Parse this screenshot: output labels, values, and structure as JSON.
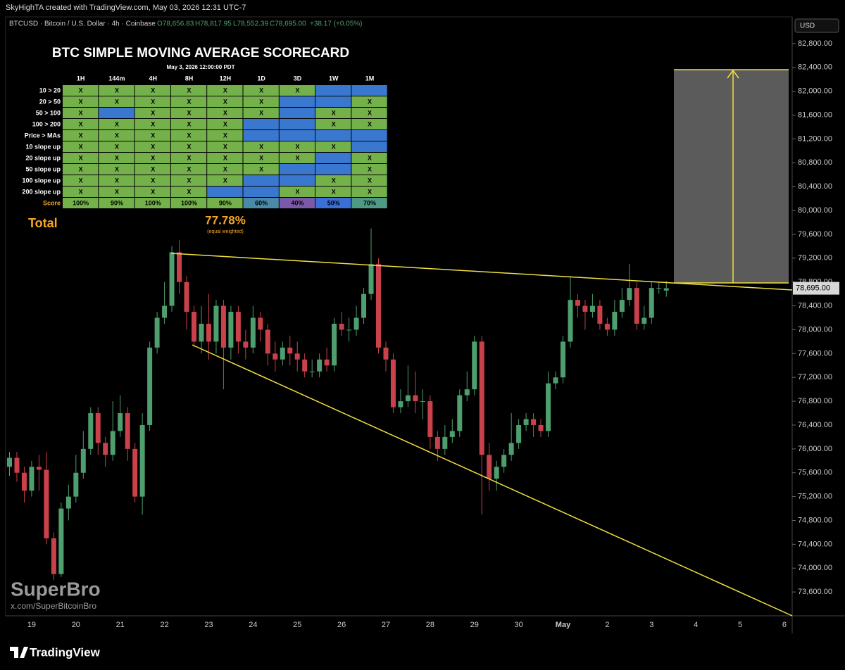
{
  "header": {
    "credit": "SkyHighTA created with TradingView.com, May 03, 2026 12:31 UTC-7",
    "symbol": "BTCUSD · Bitcoin / U.S. Dollar · 4h · Coinbase",
    "open": "O78,656.83",
    "high": "H78,817.95",
    "low": "L78,552.39",
    "close": "C78,695.00",
    "change": "+38.17 (+0.05%)",
    "currency": "USD"
  },
  "scorecard": {
    "title": "BTC SIMPLE MOVING AVERAGE SCORECARD",
    "date": "May 3, 2026 12:00:00 PDT",
    "columns": [
      "1H",
      "144m",
      "4H",
      "8H",
      "12H",
      "1D",
      "3D",
      "1W",
      "1M"
    ],
    "check_color": "#74b14b",
    "blank_color": "#3a78d0",
    "rows": [
      {
        "label": "10 > 20",
        "cells": [
          "X",
          "X",
          "X",
          "X",
          "X",
          "X",
          "X",
          null,
          null
        ]
      },
      {
        "label": "20 > 50",
        "cells": [
          "X",
          "X",
          "X",
          "X",
          "X",
          "X",
          null,
          null,
          "X"
        ]
      },
      {
        "label": "50 > 100",
        "cells": [
          "X",
          null,
          "X",
          "X",
          "X",
          "X",
          null,
          "X",
          "X"
        ]
      },
      {
        "label": "100 > 200",
        "cells": [
          "X",
          "X",
          "X",
          "X",
          "X",
          null,
          null,
          "X",
          "X"
        ]
      },
      {
        "label": "Price > MAs",
        "cells": [
          "X",
          "X",
          "X",
          "X",
          "X",
          null,
          null,
          null,
          null
        ]
      },
      {
        "label": "10 slope up",
        "cells": [
          "X",
          "X",
          "X",
          "X",
          "X",
          "X",
          "X",
          "X",
          null
        ]
      },
      {
        "label": "20 slope up",
        "cells": [
          "X",
          "X",
          "X",
          "X",
          "X",
          "X",
          "X",
          null,
          "X"
        ]
      },
      {
        "label": "50 slope up",
        "cells": [
          "X",
          "X",
          "X",
          "X",
          "X",
          "X",
          null,
          null,
          "X"
        ]
      },
      {
        "label": "100 slope up",
        "cells": [
          "X",
          "X",
          "X",
          "X",
          "X",
          null,
          null,
          "X",
          "X"
        ]
      },
      {
        "label": "200 slope up",
        "cells": [
          "X",
          "X",
          "X",
          "X",
          null,
          null,
          "X",
          "X",
          "X"
        ]
      }
    ],
    "score_label": "Score",
    "scores": [
      "100%",
      "90%",
      "100%",
      "100%",
      "90%",
      "60%",
      "40%",
      "50%",
      "70%"
    ],
    "score_colors": [
      "#74b14b",
      "#74b14b",
      "#74b14b",
      "#74b14b",
      "#74b14b",
      "#4a8aa8",
      "#7a5aa8",
      "#3a6fd8",
      "#4f9a86"
    ],
    "total_label": "Total",
    "total": "77.78%",
    "total_note": "(equal weighted)"
  },
  "chart_data": {
    "type": "candlestick",
    "up_color": "#4e9e6e",
    "down_color": "#c8414b",
    "open": [
      75700,
      75850,
      75600,
      75300,
      75700,
      75650,
      74500,
      73900,
      75000,
      75200,
      75600,
      76000,
      76600,
      76100,
      75900,
      76300,
      76600,
      76000,
      75200,
      76400,
      77700,
      78200,
      78400,
      79300,
      78800,
      78300,
      77800,
      78100,
      77800,
      78400,
      77700,
      78300,
      77800,
      77700,
      78200,
      78000,
      77600,
      77500,
      77700,
      77600,
      77500,
      77300,
      77300,
      77500,
      77400,
      78100,
      78000,
      78000,
      78200,
      78600,
      79100,
      77700,
      77500,
      76700,
      76800,
      76900,
      76800,
      76800,
      76200,
      76000,
      76200,
      76300,
      76900,
      77000,
      77800,
      75900,
      75500,
      75700,
      75900,
      76100,
      76400,
      76500,
      76400,
      76300,
      77100,
      77200,
      77800,
      78500,
      78400,
      78300,
      78400,
      78100,
      78000,
      78300,
      78500,
      78700,
      78100,
      78200,
      78700,
      78656.83
    ],
    "high": [
      75950,
      75950,
      75700,
      75800,
      75900,
      75950,
      74600,
      75100,
      75400,
      75900,
      76300,
      76700,
      76700,
      76200,
      76800,
      76900,
      76700,
      76100,
      76600,
      77800,
      78300,
      78800,
      79400,
      79500,
      78900,
      78400,
      78400,
      78600,
      78500,
      78500,
      78400,
      78400,
      78000,
      78400,
      78300,
      78100,
      77800,
      77800,
      77900,
      77800,
      77600,
      77500,
      77600,
      77700,
      78200,
      78300,
      78200,
      78400,
      78700,
      79700,
      79200,
      77800,
      77600,
      77000,
      77400,
      77300,
      77000,
      76900,
      76300,
      76400,
      76500,
      77000,
      77300,
      77900,
      77900,
      76100,
      75800,
      76000,
      76600,
      76500,
      76600,
      76600,
      76500,
      77300,
      77300,
      77900,
      78900,
      78600,
      78500,
      78600,
      78500,
      78200,
      78500,
      78700,
      79100,
      78800,
      78400,
      78800,
      78800,
      78817.95
    ],
    "low": [
      75550,
      75450,
      75100,
      75200,
      75300,
      74400,
      73800,
      73850,
      74800,
      75100,
      75500,
      75900,
      75900,
      75700,
      75800,
      76200,
      75800,
      75100,
      74900,
      76300,
      77600,
      78100,
      78300,
      78600,
      78000,
      77700,
      77600,
      77500,
      77600,
      77000,
      77500,
      77600,
      77500,
      77600,
      77800,
      77400,
      77300,
      77400,
      77400,
      77300,
      77200,
      77200,
      77200,
      77300,
      77300,
      77900,
      77800,
      77900,
      78100,
      78500,
      77600,
      77300,
      76600,
      76600,
      76700,
      76600,
      76500,
      76000,
      75800,
      75900,
      76100,
      76200,
      76800,
      76900,
      74900,
      75300,
      75300,
      75600,
      75800,
      76000,
      76300,
      76200,
      76200,
      76200,
      77000,
      77100,
      77700,
      78200,
      78000,
      78200,
      78000,
      77900,
      77900,
      78200,
      78400,
      78000,
      78000,
      78100,
      78600,
      78552.39
    ],
    "close": [
      75850,
      75600,
      75300,
      75700,
      75650,
      74500,
      73900,
      75000,
      75200,
      75600,
      76000,
      76600,
      76100,
      75900,
      76300,
      76600,
      76000,
      75200,
      76400,
      77700,
      78200,
      78400,
      79300,
      78800,
      78300,
      77800,
      78100,
      77800,
      78400,
      77700,
      78300,
      77800,
      77700,
      78200,
      78000,
      77600,
      77500,
      77700,
      77600,
      77500,
      77300,
      77300,
      77500,
      77400,
      78100,
      78000,
      78000,
      78200,
      78600,
      79100,
      77700,
      77500,
      76700,
      76800,
      76900,
      76800,
      76800,
      76200,
      76000,
      76200,
      76300,
      76900,
      77000,
      77800,
      75900,
      75500,
      75700,
      75900,
      76100,
      76400,
      76500,
      76400,
      76300,
      77100,
      77200,
      77800,
      78500,
      78400,
      78300,
      78400,
      78100,
      78000,
      78300,
      78500,
      78700,
      78100,
      78200,
      78700,
      78700,
      78695
    ],
    "x_labels": [
      "19",
      "20",
      "21",
      "22",
      "23",
      "24",
      "25",
      "26",
      "27",
      "28",
      "29",
      "30",
      "May",
      "2",
      "3",
      "4",
      "5",
      "6"
    ],
    "ylim": [
      73200,
      83000
    ],
    "yticks": [
      {
        "value": 73600,
        "label": "73,600.00"
      },
      {
        "value": 74000,
        "label": "74,000.00"
      },
      {
        "value": 74400,
        "label": "74,400.00"
      },
      {
        "value": 74800,
        "label": "74,800.00"
      },
      {
        "value": 75200,
        "label": "75,200.00"
      },
      {
        "value": 75600,
        "label": "75,600.00"
      },
      {
        "value": 76000,
        "label": "76,000.00"
      },
      {
        "value": 76400,
        "label": "76,400.00"
      },
      {
        "value": 76800,
        "label": "76,800.00"
      },
      {
        "value": 77200,
        "label": "77,200.00"
      },
      {
        "value": 77600,
        "label": "77,600.00"
      },
      {
        "value": 78000,
        "label": "78,000.00"
      },
      {
        "value": 78400,
        "label": "78,400.00"
      },
      {
        "value": 78800,
        "label": "78,800.00"
      },
      {
        "value": 79200,
        "label": "79,200.00"
      },
      {
        "value": 79600,
        "label": "79,600.00"
      },
      {
        "value": 80000,
        "label": "80,000.00"
      },
      {
        "value": 80400,
        "label": "80,400.00"
      },
      {
        "value": 80800,
        "label": "80,800.00"
      },
      {
        "value": 81200,
        "label": "81,200.00"
      },
      {
        "value": 81600,
        "label": "81,600.00"
      },
      {
        "value": 82000,
        "label": "82,000.00"
      },
      {
        "value": 82400,
        "label": "82,400.00"
      },
      {
        "value": 82800,
        "label": "82,800.00"
      }
    ],
    "last_price": {
      "value": 78695,
      "label": "78,695.00"
    }
  },
  "watermark": {
    "name": "SuperBro",
    "handle": "x.com/SuperBitcoinBro"
  },
  "footer": {
    "brand": "TradingView"
  }
}
